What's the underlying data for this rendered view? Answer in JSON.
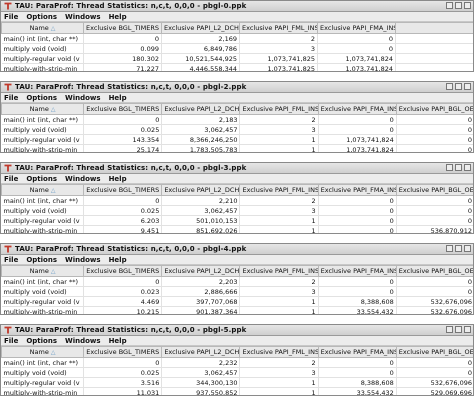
{
  "app_prefix": "TAU: ParaProf: Thread Statistics: n,c,t, 0,0,0 - ",
  "menu": [
    "File",
    "Options",
    "Windows",
    "Help"
  ],
  "sort_indicator": "△",
  "windows": [
    {
      "title": "TAU: ParaProf: Thread Statistics: n,c,t, 0,0,0 - pbgl-0.ppk",
      "columns": [
        "Name",
        "Exclusive BGL_TIMERS",
        "Exclusive PAPI_L2_DCH",
        "Exclusive PAPI_FML_INS",
        "Exclusive PAPI_FMA_INS"
      ],
      "rows": [
        [
          "main() int (int, char **)",
          "0",
          "2,169",
          "2",
          "0"
        ],
        [
          "multiply void (void)",
          "0.099",
          "6,849,786",
          "3",
          "0"
        ],
        [
          "multiply-regular void (v",
          "180.302",
          "10,521,544,925",
          "1,073,741,825",
          "1,073,741,824"
        ],
        [
          "multiply-with-strip-min",
          "71.227",
          "4,446,558,344",
          "1,073,741,825",
          "1,073,741,824"
        ]
      ]
    },
    {
      "title": "TAU: ParaProf: Thread Statistics: n,c,t, 0,0,0 - pbgl-2.ppk",
      "columns": [
        "Name",
        "Exclusive BGL_TIMERS",
        "Exclusive PAPI_L2_DCH",
        "Exclusive PAPI_FML_INS",
        "Exclusive PAPI_FMA_INS",
        "Exclusive PAPI_BGL_OED"
      ],
      "rows": [
        [
          "main() int (int, char **)",
          "0",
          "2,183",
          "2",
          "0",
          "0"
        ],
        [
          "multiply void (void)",
          "0.025",
          "3,062,457",
          "3",
          "0",
          "0"
        ],
        [
          "multiply-regular void (v",
          "143.354",
          "8,366,246,250",
          "1",
          "1,073,741,824",
          "0"
        ],
        [
          "multiply-with-strip-min",
          "25.174",
          "1,783,505,783",
          "1",
          "1,073,741,824",
          "0"
        ]
      ]
    },
    {
      "title": "TAU: ParaProf: Thread Statistics: n,c,t, 0,0,0 - pbgl-3.ppk",
      "columns": [
        "Name",
        "Exclusive BGL_TIMERS",
        "Exclusive PAPI_L2_DCH",
        "Exclusive PAPI_FML_INS",
        "Exclusive PAPI_FMA_INS",
        "Exclusive PAPI_BGL_OED"
      ],
      "rows": [
        [
          "main() int (int, char **)",
          "0",
          "2,210",
          "2",
          "0",
          "0"
        ],
        [
          "multiply void (void)",
          "0.025",
          "3,062,457",
          "3",
          "0",
          "0"
        ],
        [
          "multiply-regular void (v",
          "6.203",
          "501,010,153",
          "1",
          "0",
          "0"
        ],
        [
          "multiply-with-strip-min",
          "9.451",
          "851,692,026",
          "1",
          "0",
          "536,870,912"
        ]
      ]
    },
    {
      "title": "TAU: ParaProf: Thread Statistics: n,c,t, 0,0,0 - pbgl-4.ppk",
      "columns": [
        "Name",
        "Exclusive BGL_TIMERS",
        "Exclusive PAPI_L2_DCH",
        "Exclusive PAPI_FML_INS",
        "Exclusive PAPI_FMA_INS",
        "Exclusive PAPI_BGL_OED"
      ],
      "rows": [
        [
          "main() int (int, char **)",
          "0",
          "2,203",
          "2",
          "0",
          "0"
        ],
        [
          "multiply void (void)",
          "0.023",
          "2,886,666",
          "3",
          "0",
          "0"
        ],
        [
          "multiply-regular void (v",
          "4.469",
          "397,707,068",
          "1",
          "8,388,608",
          "532,676,096"
        ],
        [
          "multiply-with-strip-min",
          "10.215",
          "901,387,364",
          "1",
          "33,554,432",
          "532,676,096"
        ]
      ]
    },
    {
      "title": "TAU: ParaProf: Thread Statistics: n,c,t, 0,0,0 - pbgl-5.ppk",
      "columns": [
        "Name",
        "Exclusive BGL_TIMERS",
        "Exclusive PAPI_L2_DCH",
        "Exclusive PAPI_FML_INS",
        "Exclusive PAPI_FMA_INS",
        "Exclusive PAPI_BGL_OED"
      ],
      "rows": [
        [
          "main() int (int, char **)",
          "0",
          "2,232",
          "2",
          "0",
          "0"
        ],
        [
          "multiply void (void)",
          "0.025",
          "3,062,457",
          "3",
          "0",
          "0"
        ],
        [
          "multiply-regular void (v",
          "3.516",
          "344,300,130",
          "1",
          "8,388,608",
          "532,676,096"
        ],
        [
          "multiply-with-strip-min",
          "11.031",
          "937,550,852",
          "1",
          "33,554,432",
          "529,069,696"
        ]
      ]
    }
  ],
  "colors": {
    "titlebar": "#d8d8d8",
    "logo": "#c0392b",
    "header": "#e8e8e8"
  }
}
